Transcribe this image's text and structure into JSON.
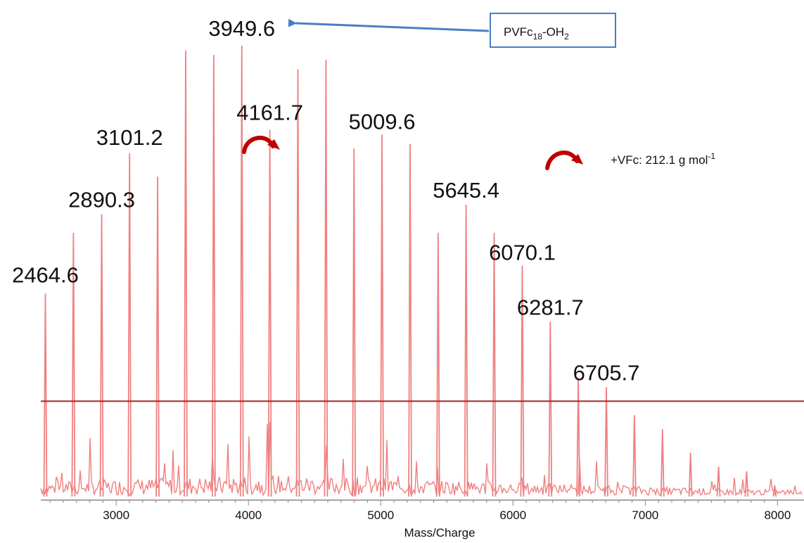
{
  "chart_data": {
    "type": "line",
    "title": "",
    "xlabel": "Mass/Charge",
    "ylabel": "",
    "xlim": [
      2430,
      8200
    ],
    "ylim": [
      0,
      100
    ],
    "x_ticks": [
      3000,
      4000,
      5000,
      6000,
      7000,
      8000
    ],
    "grid": false,
    "legend": "none",
    "threshold_y": 21,
    "colors": {
      "trace": "#f08080",
      "threshold": "#a52a2a",
      "arrow": "#4a7fc1",
      "box_border": "#4a7fc1",
      "curved_arrow": "#c00000"
    },
    "peaks": [
      {
        "x": 2464.6,
        "y": 44
      },
      {
        "x": 2676.7,
        "y": 57
      },
      {
        "x": 2890.3,
        "y": 61
      },
      {
        "x": 3101.2,
        "y": 74
      },
      {
        "x": 3313.3,
        "y": 69
      },
      {
        "x": 3525.4,
        "y": 96
      },
      {
        "x": 3737.5,
        "y": 95
      },
      {
        "x": 3949.6,
        "y": 97
      },
      {
        "x": 4161.7,
        "y": 79
      },
      {
        "x": 4373.8,
        "y": 92
      },
      {
        "x": 4585.9,
        "y": 94
      },
      {
        "x": 4797.9,
        "y": 75
      },
      {
        "x": 5009.6,
        "y": 78
      },
      {
        "x": 5222.0,
        "y": 76
      },
      {
        "x": 5433.9,
        "y": 57
      },
      {
        "x": 5645.4,
        "y": 63
      },
      {
        "x": 5857.5,
        "y": 57
      },
      {
        "x": 6070.1,
        "y": 50
      },
      {
        "x": 6281.7,
        "y": 38
      },
      {
        "x": 6493.7,
        "y": 26
      },
      {
        "x": 6705.7,
        "y": 24
      },
      {
        "x": 6917.8,
        "y": 18
      },
      {
        "x": 7129.9,
        "y": 15
      },
      {
        "x": 7342.0,
        "y": 10
      },
      {
        "x": 7554.1,
        "y": 7
      },
      {
        "x": 7766.2,
        "y": 6
      },
      {
        "x": 7978.3,
        "y": 3
      }
    ],
    "labels": [
      {
        "text": "2464.6",
        "x": 2464.6
      },
      {
        "text": "2890.3",
        "x": 2890.3
      },
      {
        "text": "3101.2",
        "x": 3101.2
      },
      {
        "text": "3949.6",
        "x": 3949.6
      },
      {
        "text": "4161.7",
        "x": 4161.7
      },
      {
        "text": "5009.6",
        "x": 5009.6
      },
      {
        "text": "5645.4",
        "x": 5645.4
      },
      {
        "text": "6070.1",
        "x": 6070.1
      },
      {
        "text": "6281.7",
        "x": 6281.7
      },
      {
        "text": "6705.7",
        "x": 6705.7
      }
    ],
    "annotations": {
      "species_box": {
        "text_main": "PVFc",
        "text_sub": "18",
        "text_tail": "-OH",
        "text_tail_sub": "2"
      },
      "increment": {
        "text_main": "+VFc: 212.1 g mol",
        "text_sup": "-1"
      }
    }
  }
}
